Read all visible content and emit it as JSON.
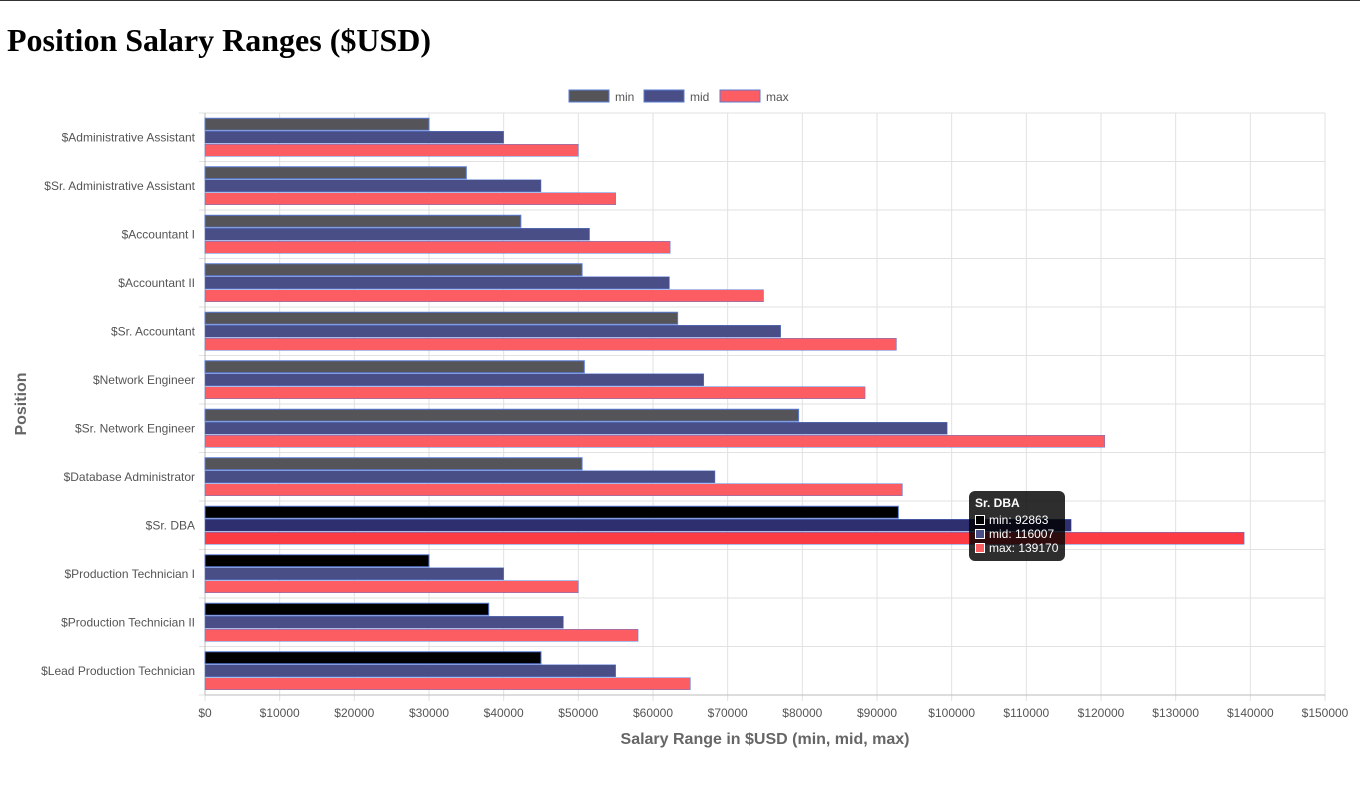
{
  "page": {
    "title": "Position Salary Ranges ($USD)"
  },
  "colors": {
    "min": "#555559",
    "mid": "#4a4e86",
    "max": "#fc5d63",
    "min_active": "#000000",
    "mid_active": "#2d2f6e",
    "max_active": "#fb3c44"
  },
  "chart_data": {
    "type": "bar",
    "orientation": "horizontal",
    "title": "",
    "xlabel": "Salary Range in $USD (min, mid, max)",
    "ylabel": "Position",
    "xlim": [
      0,
      150000
    ],
    "x_tick_step": 10000,
    "x_tick_prefix": "$",
    "grid": true,
    "legend_position": "top-center",
    "categories": [
      "$Administrative Assistant",
      "$Sr. Administrative Assistant",
      "$Accountant I",
      "$Accountant II",
      "$Sr. Accountant",
      "$Network Engineer",
      "$Sr. Network Engineer",
      "$Database Administrator",
      "$Sr. DBA",
      "$Production Technician I",
      "$Production Technician II",
      "$Lead Production Technician"
    ],
    "series": [
      {
        "name": "min",
        "values": [
          30000,
          35000,
          42300,
          50500,
          63300,
          50800,
          79500,
          50500,
          92863,
          30000,
          38000,
          45000
        ]
      },
      {
        "name": "mid",
        "values": [
          40000,
          45000,
          51500,
          62200,
          77100,
          66800,
          99400,
          68300,
          116007,
          40000,
          48000,
          55000
        ]
      },
      {
        "name": "max",
        "values": [
          50000,
          55000,
          62300,
          74800,
          92600,
          88400,
          120500,
          93400,
          139170,
          50000,
          58000,
          65000
        ]
      }
    ],
    "highlighted_category_index": 8,
    "dark_min_category_indices": [
      8,
      9,
      10,
      11
    ]
  },
  "tooltip": {
    "title": "Sr. DBA",
    "rows": [
      "min: 92863",
      "mid: 116007",
      "max: 139170"
    ]
  }
}
